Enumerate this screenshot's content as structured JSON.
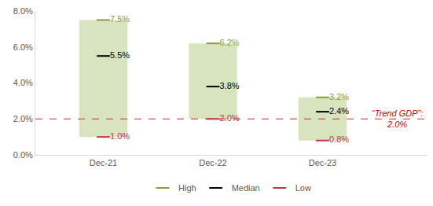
{
  "chart_data": {
    "type": "floating_bar",
    "categories": [
      "Dec-21",
      "Dec-22",
      "Dec-23"
    ],
    "series": [
      {
        "name": "High",
        "color": "#8c9a3b",
        "values": [
          7.5,
          6.2,
          3.2
        ],
        "value_labels": [
          "7.5%",
          "6.2%",
          "3.2%"
        ]
      },
      {
        "name": "Median",
        "color": "#000000",
        "values": [
          5.5,
          3.8,
          2.4
        ],
        "value_labels": [
          "5.5%",
          "3.8%",
          "2.4%"
        ]
      },
      {
        "name": "Low",
        "color": "#c0334d",
        "values": [
          1.0,
          2.0,
          0.8
        ],
        "value_labels": [
          "1.0%",
          "2.0%",
          "0.8%"
        ]
      }
    ],
    "reference_line": {
      "value": 2.0,
      "label": [
        "“Trend GDP”:",
        "2.0%"
      ],
      "color": "#e02020"
    },
    "ylim": [
      0,
      8
    ],
    "yticks": [
      {
        "value": 0,
        "label": "0.0%"
      },
      {
        "value": 2,
        "label": "2.0%"
      },
      {
        "value": 4,
        "label": "4.0%"
      },
      {
        "value": 6,
        "label": "6.0%"
      },
      {
        "value": 8,
        "label": "8.0%"
      }
    ],
    "grid": false,
    "legend": "bottom",
    "data_labels": true
  }
}
